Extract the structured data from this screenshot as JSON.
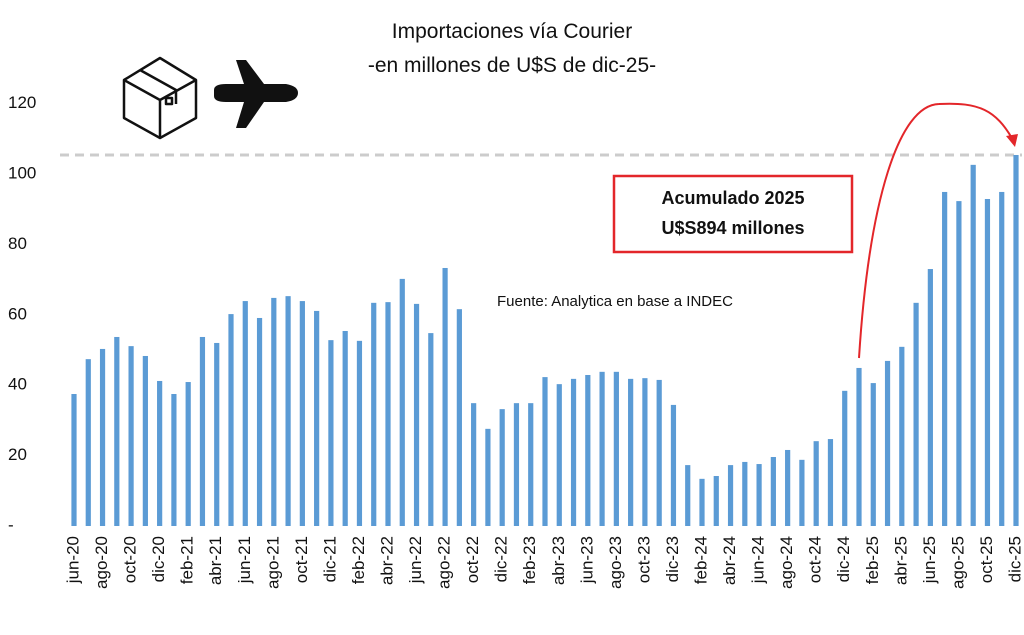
{
  "chart_data": {
    "type": "bar",
    "title": "Importaciones vía Courier",
    "subtitle": "-en millones de U$S de dic-25-",
    "annotation": [
      "Acumulado 2025",
      "U$S894 millones"
    ],
    "source": "Fuente: Analytica en base a INDEC",
    "color": "#5b9bd5",
    "ylim": [
      0,
      125
    ],
    "yticks": [
      {
        "value": 0,
        "label": "-"
      },
      20,
      40,
      60,
      80,
      100,
      120
    ],
    "categories": [
      "jun-20",
      null,
      "ago-20",
      null,
      "oct-20",
      null,
      "dic-20",
      null,
      "feb-21",
      null,
      "abr-21",
      null,
      "jun-21",
      null,
      "ago-21",
      null,
      "oct-21",
      null,
      "dic-21",
      null,
      "feb-22",
      null,
      "abr-22",
      null,
      "jun-22",
      null,
      "ago-22",
      null,
      "oct-22",
      null,
      "dic-22",
      null,
      "feb-23",
      null,
      "abr-23",
      null,
      "jun-23",
      null,
      "ago-23",
      null,
      "oct-23",
      null,
      "dic-23",
      null,
      "feb-24",
      null,
      "abr-24",
      null,
      "jun-24",
      null,
      "ago-24",
      null,
      "oct-24",
      null,
      "dic-24",
      null,
      "feb-25",
      null,
      "abr-25",
      null,
      "jun-25",
      null,
      "ago-25",
      null,
      "oct-25",
      null,
      "dic-25"
    ],
    "values": [
      37.5,
      47.4,
      50.3,
      53.7,
      51.1,
      48.3,
      41.2,
      37.5,
      40.9,
      53.7,
      52.0,
      60.2,
      63.9,
      59.1,
      64.8,
      65.3,
      63.9,
      61.1,
      52.8,
      55.4,
      52.6,
      63.4,
      63.6,
      70.2,
      63.1,
      54.8,
      73.3,
      61.6,
      34.9,
      27.6,
      33.2,
      34.9,
      34.9,
      42.3,
      40.3,
      41.8,
      42.9,
      43.8,
      43.8,
      41.8,
      42.0,
      41.5,
      34.4,
      17.3,
      13.4,
      14.2,
      17.3,
      18.2,
      17.6,
      19.6,
      21.6,
      18.8,
      24.1,
      24.7,
      38.4,
      44.9,
      40.6,
      46.9,
      50.9,
      63.4,
      73.0,
      94.9,
      92.3,
      102.6,
      92.9,
      94.9,
      105.4
    ]
  }
}
